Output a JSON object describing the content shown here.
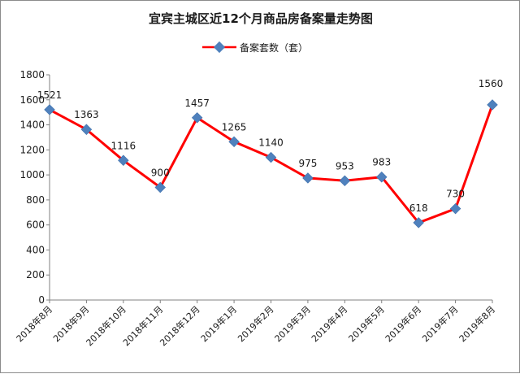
{
  "chart_data": {
    "type": "line",
    "title": "宜宾主城区近12个月商品房备案量走势图",
    "xlabel": "",
    "ylabel": "",
    "categories": [
      "2018年8月",
      "2018年9月",
      "2018年10月",
      "2018年11月",
      "2018年12月",
      "2019年1月",
      "2019年2月",
      "2019年3月",
      "2019年4月",
      "2019年5月",
      "2019年6月",
      "2019年7月",
      "2019年8月"
    ],
    "series": [
      {
        "name": "备案套数（套）",
        "values": [
          1521,
          1363,
          1116,
          900,
          1457,
          1265,
          1140,
          975,
          953,
          983,
          618,
          730,
          1560
        ]
      }
    ],
    "ylim": [
      0,
      1800
    ],
    "yticks": [
      "0",
      "200",
      "400",
      "600",
      "800",
      "1000",
      "1200",
      "1400",
      "1600",
      "1800"
    ],
    "grid": false,
    "legend_position": "top"
  },
  "colors": {
    "line": "#ff0000",
    "marker": "#4f81bd",
    "axis": "#808080"
  }
}
